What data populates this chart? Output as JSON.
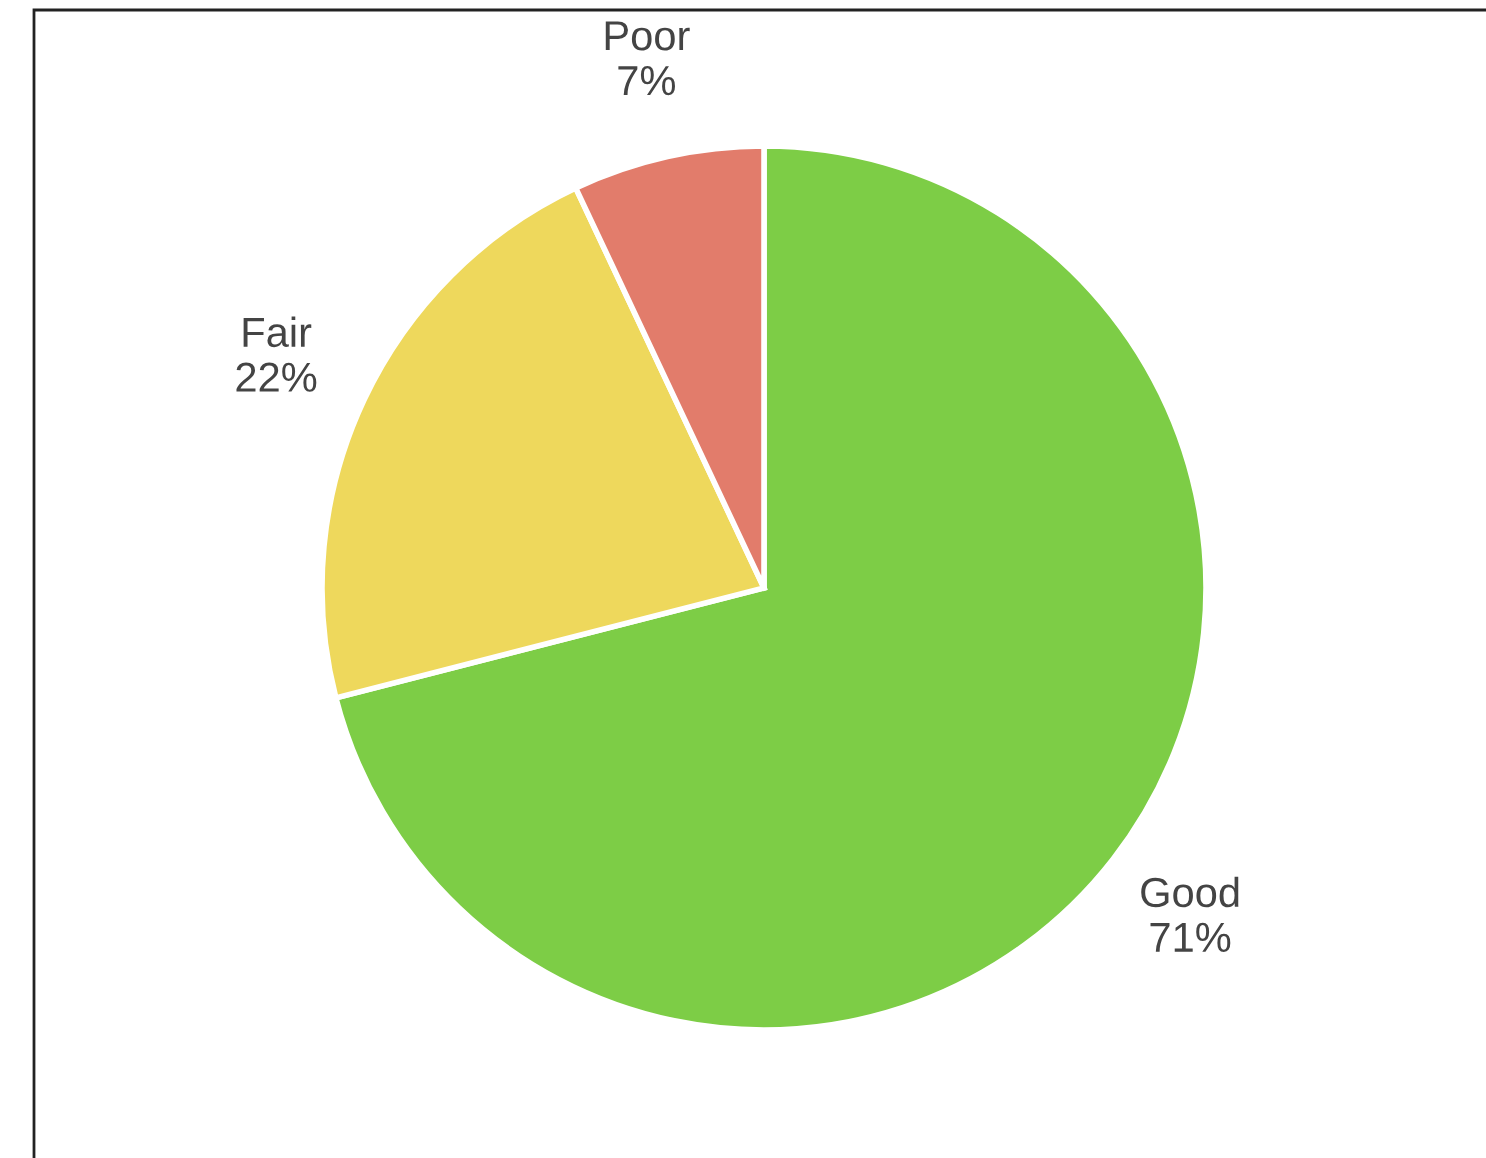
{
  "chart_data": {
    "type": "pie",
    "categories": [
      "Good",
      "Fair",
      "Poor"
    ],
    "values": [
      71,
      22,
      7
    ],
    "colors": [
      "#7dcd46",
      "#eed85c",
      "#e27c6b"
    ],
    "value_labels": [
      "71%",
      "22%",
      "7%"
    ]
  }
}
